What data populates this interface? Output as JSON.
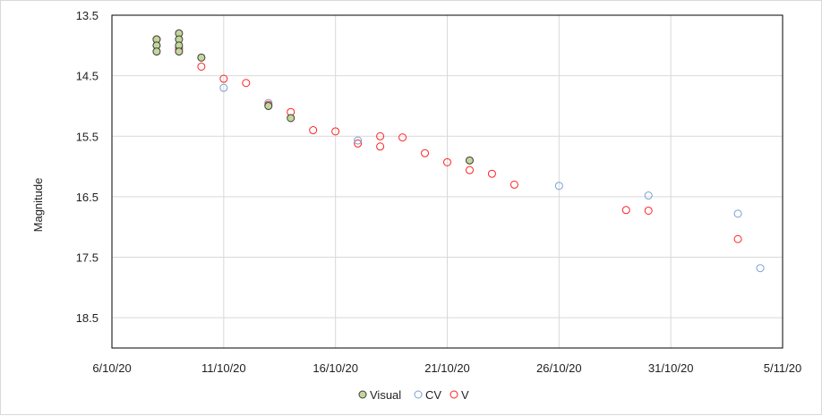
{
  "chart_data": {
    "type": "scatter",
    "ylabel": "Magnitude",
    "xlabel": "",
    "y_reversed": true,
    "ylim": [
      13.5,
      19.0
    ],
    "xlim": [
      "2020-10-06",
      "2020-11-05"
    ],
    "x_ticks": [
      "6/10/20",
      "11/10/20",
      "16/10/20",
      "21/10/20",
      "26/10/20",
      "31/10/20",
      "5/11/20"
    ],
    "y_ticks": [
      "13.5",
      "14.5",
      "15.5",
      "16.5",
      "17.5",
      "18.5"
    ],
    "grid": true,
    "legend_position": "bottom",
    "series": [
      {
        "name": "Visual",
        "marker": "filled-circle",
        "fill": "#c4d79b",
        "stroke": "#3a3a3a",
        "points": [
          [
            "2020-10-08",
            13.9
          ],
          [
            "2020-10-08",
            14.0
          ],
          [
            "2020-10-08",
            14.1
          ],
          [
            "2020-10-09",
            13.8
          ],
          [
            "2020-10-09",
            13.9
          ],
          [
            "2020-10-09",
            14.0
          ],
          [
            "2020-10-09",
            14.1
          ],
          [
            "2020-10-10",
            14.2
          ],
          [
            "2020-10-13",
            15.0
          ],
          [
            "2020-10-14",
            15.2
          ],
          [
            "2020-10-22",
            15.9
          ]
        ]
      },
      {
        "name": "CV",
        "marker": "open-circle",
        "fill": "none",
        "stroke": "#7ba0d0",
        "points": [
          [
            "2020-10-11",
            14.7
          ],
          [
            "2020-10-13",
            14.95
          ],
          [
            "2020-10-17",
            15.57
          ],
          [
            "2020-10-26",
            16.32
          ],
          [
            "2020-10-30",
            16.48
          ],
          [
            "2020-11-03",
            16.78
          ],
          [
            "2020-11-04",
            17.68
          ]
        ]
      },
      {
        "name": "V",
        "marker": "open-circle",
        "fill": "none",
        "stroke": "#ff2020",
        "points": [
          [
            "2020-10-08",
            13.9
          ],
          [
            "2020-10-09",
            14.05
          ],
          [
            "2020-10-10",
            14.35
          ],
          [
            "2020-10-11",
            14.55
          ],
          [
            "2020-10-12",
            14.62
          ],
          [
            "2020-10-13",
            14.98
          ],
          [
            "2020-10-14",
            15.1
          ],
          [
            "2020-10-15",
            15.4
          ],
          [
            "2020-10-16",
            15.42
          ],
          [
            "2020-10-17",
            15.62
          ],
          [
            "2020-10-18",
            15.5
          ],
          [
            "2020-10-18",
            15.67
          ],
          [
            "2020-10-19",
            15.52
          ],
          [
            "2020-10-20",
            15.78
          ],
          [
            "2020-10-21",
            15.93
          ],
          [
            "2020-10-22",
            16.06
          ],
          [
            "2020-10-23",
            16.12
          ],
          [
            "2020-10-24",
            16.3
          ],
          [
            "2020-10-29",
            16.72
          ],
          [
            "2020-10-30",
            16.73
          ],
          [
            "2020-11-03",
            17.2
          ]
        ]
      }
    ]
  }
}
